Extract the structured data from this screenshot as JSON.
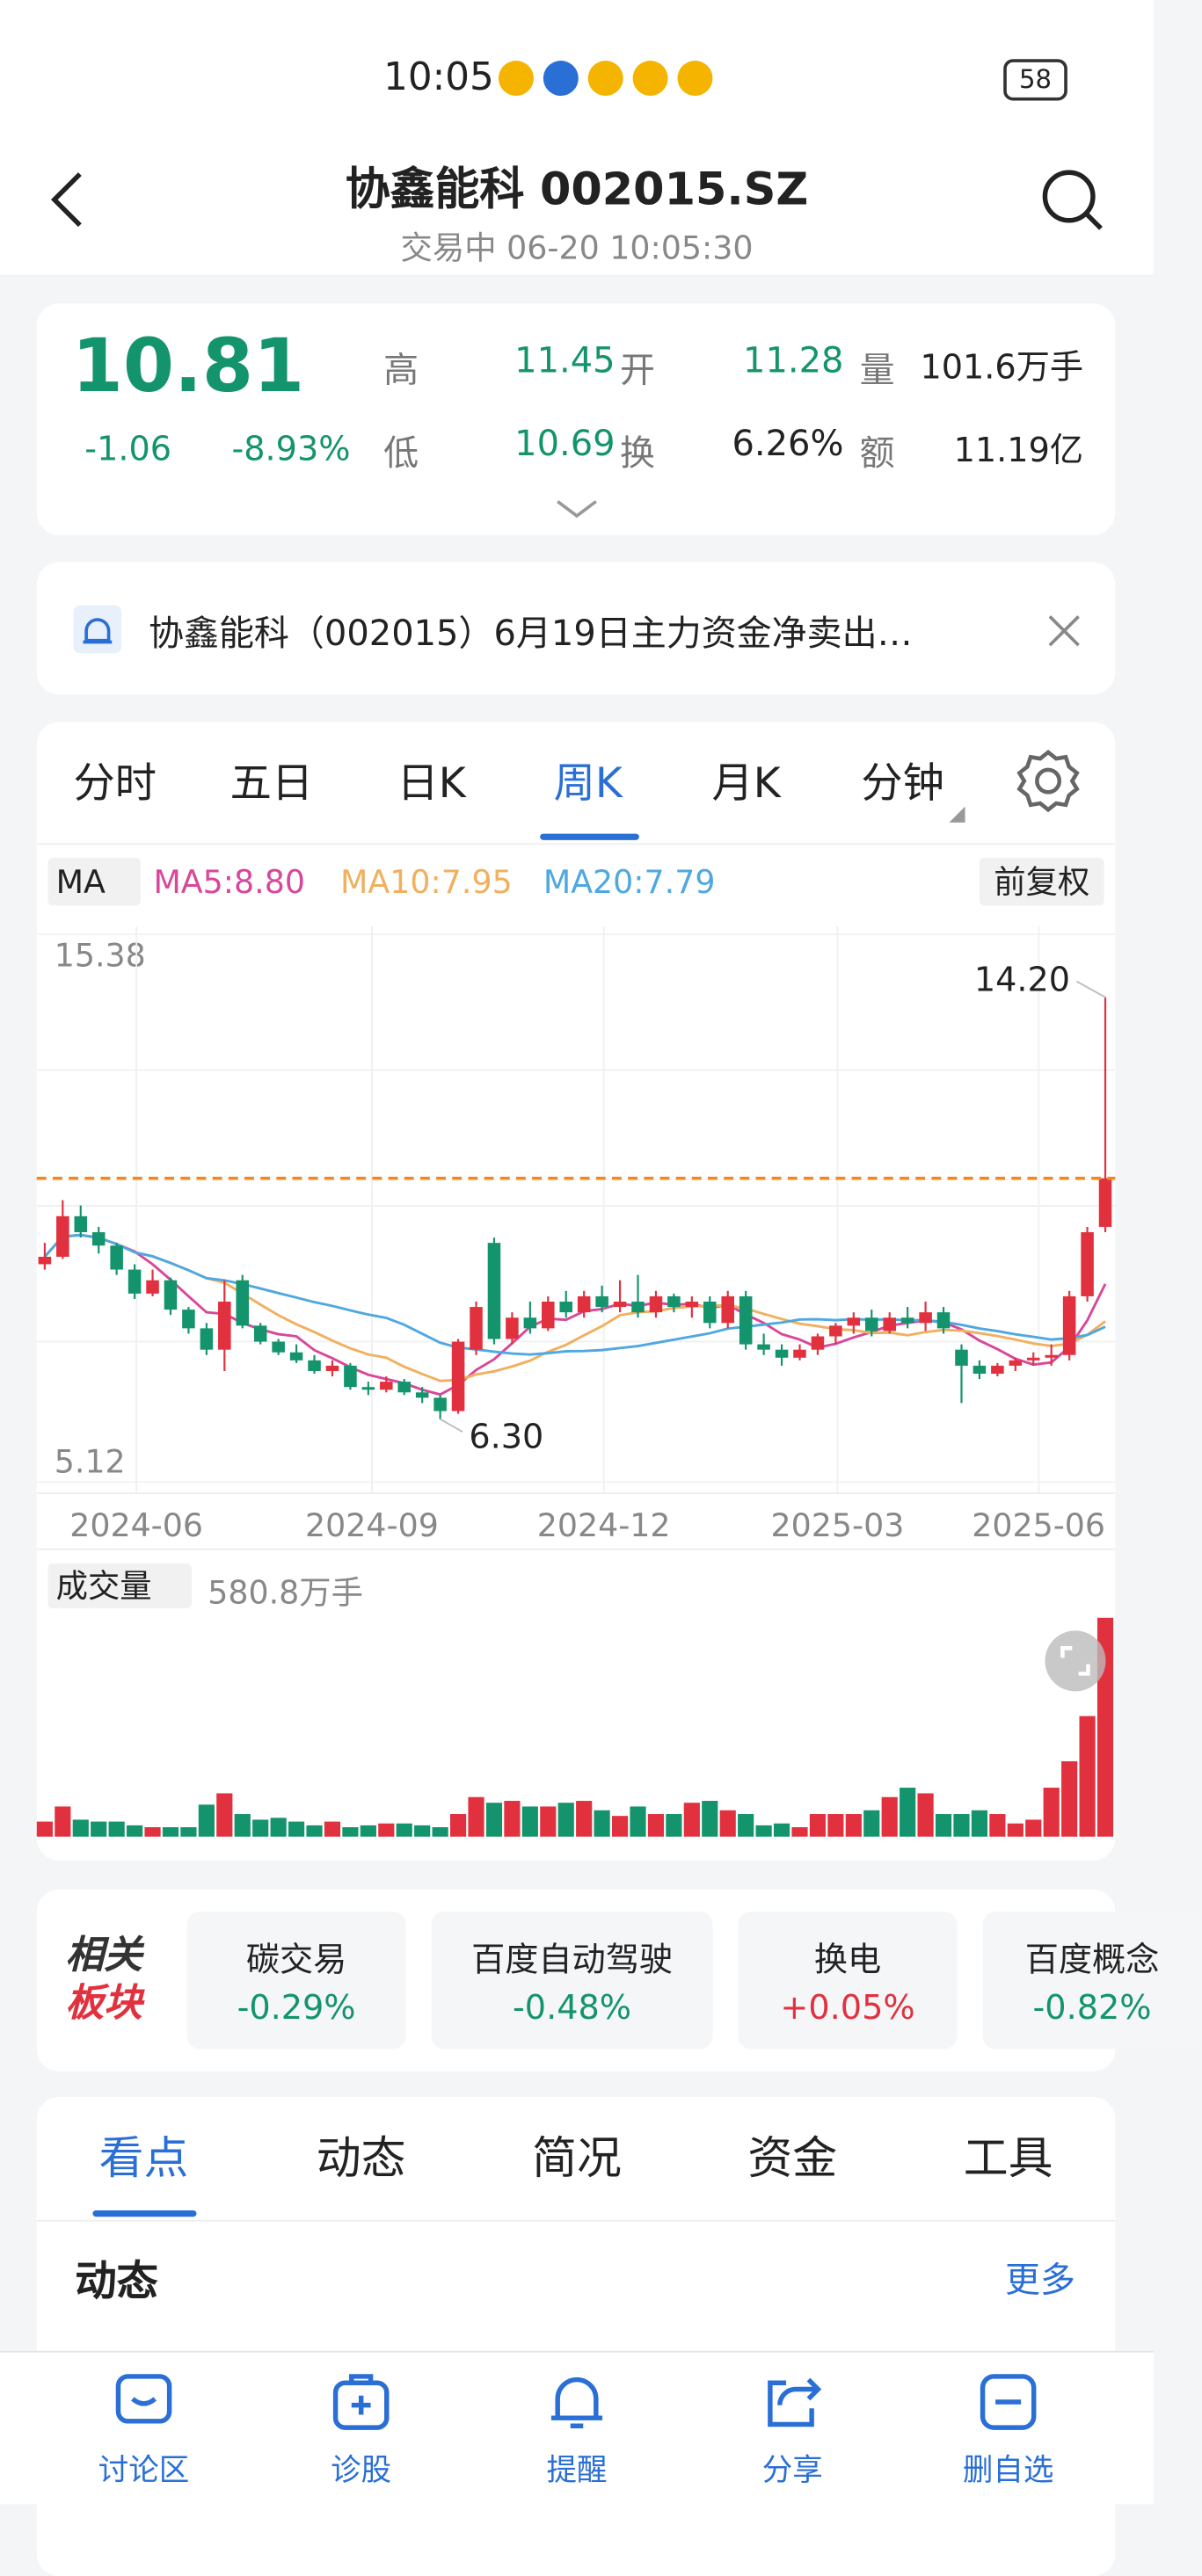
{
  "status_bar": {
    "time": "10:05",
    "battery": "58"
  },
  "header": {
    "title": "协鑫能科 002015.SZ",
    "subtitle": "交易中 06-20 10:05:30"
  },
  "quote": {
    "price": "10.81",
    "change": "-1.06",
    "change_pct": "-8.93%",
    "fields": [
      {
        "label": "高",
        "value": "11.45"
      },
      {
        "label": "开",
        "value": "11.28"
      },
      {
        "label": "量",
        "value": "101.6万手"
      },
      {
        "label": "低",
        "value": "10.69"
      },
      {
        "label": "换",
        "value": "6.26%"
      },
      {
        "label": "额",
        "value": "11.19亿"
      }
    ]
  },
  "news": "协鑫能科（002015）6月19日主力资金净卖出…",
  "tabs": [
    "分时",
    "五日",
    "日K",
    "周K",
    "月K",
    "分钟"
  ],
  "ma_bar": {
    "label": "MA",
    "items": [
      "MA5:8.80",
      "MA10:7.95",
      "MA20:7.79"
    ],
    "adjust": "前复权"
  },
  "chart": {
    "type": "candlestick",
    "ylim": [
      5.12,
      15.38
    ],
    "yticks": [
      {
        "value": 15.38,
        "label": "15.38"
      },
      {
        "value": 5.12,
        "label": "5.12"
      }
    ],
    "x_labels": [
      "2024-06",
      "2024-09",
      "2024-12",
      "2025-03",
      "2025-06"
    ],
    "last": 10.81,
    "max_annotation": {
      "value": 14.2,
      "label": "14.20"
    },
    "min_annotation": {
      "value": 6.3,
      "label": "6.30"
    },
    "candles": [
      [
        9.2,
        9.6,
        9.1,
        9.34
      ],
      [
        9.34,
        10.4,
        9.3,
        10.1
      ],
      [
        10.1,
        10.3,
        9.7,
        9.8
      ],
      [
        9.8,
        9.9,
        9.4,
        9.55
      ],
      [
        9.55,
        9.6,
        9.0,
        9.1
      ],
      [
        9.1,
        9.2,
        8.55,
        8.65
      ],
      [
        8.65,
        9.1,
        8.6,
        8.9
      ],
      [
        8.9,
        8.95,
        8.25,
        8.35
      ],
      [
        8.35,
        8.4,
        7.9,
        8.0
      ],
      [
        8.0,
        8.1,
        7.5,
        7.6
      ],
      [
        7.6,
        8.9,
        7.2,
        8.5
      ],
      [
        8.9,
        9.0,
        8.0,
        8.05
      ],
      [
        8.05,
        8.1,
        7.7,
        7.75
      ],
      [
        7.75,
        7.8,
        7.5,
        7.55
      ],
      [
        7.55,
        7.7,
        7.35,
        7.4
      ],
      [
        7.4,
        7.5,
        7.15,
        7.2
      ],
      [
        7.2,
        7.4,
        7.1,
        7.3
      ],
      [
        7.3,
        7.35,
        6.85,
        6.9
      ],
      [
        6.9,
        7.0,
        6.75,
        6.85
      ],
      [
        6.85,
        7.1,
        6.8,
        7.0
      ],
      [
        7.0,
        7.05,
        6.75,
        6.8
      ],
      [
        6.8,
        6.9,
        6.6,
        6.7
      ],
      [
        6.7,
        6.75,
        6.3,
        6.45
      ],
      [
        6.45,
        7.8,
        6.4,
        7.75
      ],
      [
        7.6,
        8.5,
        7.5,
        8.4
      ],
      [
        9.6,
        9.7,
        7.7,
        7.8
      ],
      [
        7.8,
        8.3,
        7.7,
        8.2
      ],
      [
        8.2,
        8.5,
        7.9,
        8.0
      ],
      [
        8.0,
        8.6,
        7.95,
        8.5
      ],
      [
        8.5,
        8.7,
        8.2,
        8.3
      ],
      [
        8.3,
        8.7,
        8.2,
        8.6
      ],
      [
        8.6,
        8.8,
        8.3,
        8.4
      ],
      [
        8.4,
        8.9,
        8.3,
        8.5
      ],
      [
        8.5,
        9.0,
        8.2,
        8.3
      ],
      [
        8.3,
        8.7,
        8.2,
        8.6
      ],
      [
        8.6,
        8.65,
        8.3,
        8.4
      ],
      [
        8.4,
        8.6,
        8.2,
        8.5
      ],
      [
        8.5,
        8.6,
        8.0,
        8.1
      ],
      [
        8.1,
        8.7,
        8.0,
        8.6
      ],
      [
        8.6,
        8.7,
        7.6,
        7.7
      ],
      [
        7.7,
        7.9,
        7.5,
        7.6
      ],
      [
        7.6,
        7.7,
        7.3,
        7.45
      ],
      [
        7.45,
        7.7,
        7.4,
        7.6
      ],
      [
        7.6,
        7.9,
        7.5,
        7.85
      ],
      [
        7.85,
        8.1,
        7.7,
        8.05
      ],
      [
        8.05,
        8.3,
        7.9,
        8.2
      ],
      [
        8.2,
        8.35,
        7.85,
        7.95
      ],
      [
        7.95,
        8.3,
        7.9,
        8.2
      ],
      [
        8.2,
        8.4,
        8.0,
        8.1
      ],
      [
        8.1,
        8.5,
        7.95,
        8.3
      ],
      [
        8.3,
        8.4,
        7.9,
        8.0
      ],
      [
        7.6,
        7.7,
        6.6,
        7.3
      ],
      [
        7.3,
        7.4,
        7.05,
        7.15
      ],
      [
        7.15,
        7.35,
        7.1,
        7.3
      ],
      [
        7.3,
        7.45,
        7.2,
        7.4
      ],
      [
        7.4,
        7.55,
        7.3,
        7.45
      ],
      [
        7.45,
        7.7,
        7.3,
        7.5
      ],
      [
        7.5,
        8.7,
        7.4,
        8.6
      ],
      [
        8.6,
        9.9,
        8.5,
        9.8
      ],
      [
        9.9,
        14.2,
        9.8,
        10.81
      ]
    ]
  },
  "volume": {
    "label": "成交量",
    "scale": {
      "value": 580.8,
      "label": "580.8万手"
    },
    "values": [
      40,
      80,
      45,
      40,
      40,
      30,
      25,
      25,
      25,
      85,
      115,
      60,
      45,
      50,
      40,
      30,
      40,
      25,
      30,
      35,
      35,
      30,
      25,
      60,
      105,
      90,
      95,
      80,
      80,
      90,
      95,
      70,
      55,
      80,
      60,
      60,
      90,
      95,
      70,
      60,
      30,
      35,
      25,
      60,
      60,
      60,
      70,
      105,
      130,
      115,
      60,
      60,
      70,
      60,
      35,
      45,
      130,
      200,
      320,
      580.8
    ]
  },
  "sectors": {
    "label": [
      "相关",
      "板块"
    ],
    "items": [
      {
        "name": "碳交易",
        "change": "-0.29%"
      },
      {
        "name": "百度自动驾驶",
        "change": "-0.48%"
      },
      {
        "name": "换电",
        "change": "+0.05%"
      },
      {
        "name": "百度概念",
        "change": "-0.82%"
      }
    ]
  },
  "bottom_tabs": [
    "看点",
    "动态",
    "简况",
    "资金",
    "工具"
  ],
  "section": {
    "title": "动态",
    "more": "更多"
  },
  "nav": [
    "讨论区",
    "诊股",
    "提醒",
    "分享",
    "删自选"
  ]
}
